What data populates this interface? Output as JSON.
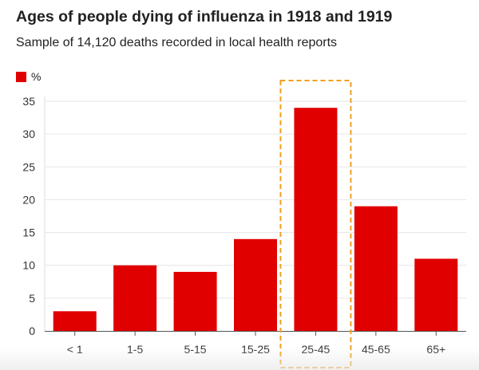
{
  "chart_data": {
    "type": "bar",
    "title": "Ages of people dying of influenza in 1918 and 1919",
    "subtitle": "Sample of 14,120 deaths recorded in local health reports",
    "legend": [
      {
        "label": "%",
        "color": "#e00000"
      }
    ],
    "categories": [
      "< 1",
      "1-5",
      "5-15",
      "15-25",
      "25-45",
      "45-65",
      "65+"
    ],
    "values": [
      3,
      10,
      9,
      14,
      34,
      19,
      11
    ],
    "ylim": [
      0,
      35
    ],
    "yticks": [
      0,
      5,
      10,
      15,
      20,
      25,
      30,
      35
    ],
    "xlabel": "",
    "ylabel": "",
    "grid": true,
    "highlight_category": "25-45",
    "colors": {
      "bar": "#e00000",
      "highlight_box": "#f0a020",
      "grid": "#e6e6e6",
      "axis": "#555555"
    }
  }
}
